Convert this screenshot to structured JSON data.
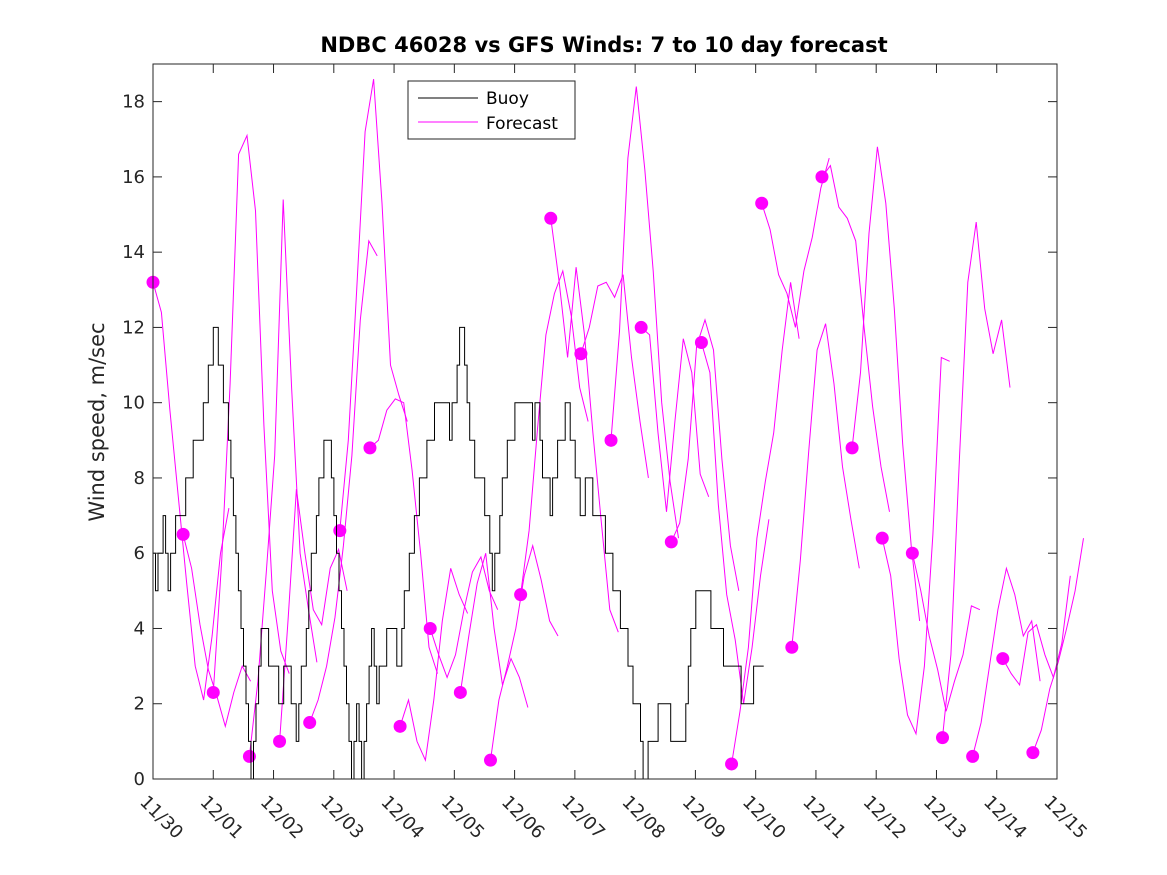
{
  "colors": {
    "buoy": "#000000",
    "forecast": "#ff00ff",
    "axis": "#262626",
    "background": "#ffffff"
  },
  "chart_data": {
    "type": "line",
    "title": "NDBC 46028 vs GFS Winds: 7 to 10 day forecast",
    "xlabel": "",
    "ylabel": "Wind speed, m/sec",
    "xlim": [
      0,
      15
    ],
    "ylim": [
      0,
      19
    ],
    "grid": false,
    "legend_position": "top-center",
    "x_ticks": [
      0,
      1,
      2,
      3,
      4,
      5,
      6,
      7,
      8,
      9,
      10,
      11,
      12,
      13,
      14,
      15
    ],
    "x_tick_labels": [
      "11/30",
      "12/01",
      "12/02",
      "12/03",
      "12/04",
      "12/05",
      "12/06",
      "12/07",
      "12/08",
      "12/09",
      "12/10",
      "12/11",
      "12/12",
      "12/13",
      "12/14",
      "12/15"
    ],
    "y_ticks": [
      0,
      2,
      4,
      6,
      8,
      10,
      12,
      14,
      16,
      18
    ],
    "y_tick_labels": [
      "0",
      "2",
      "4",
      "6",
      "8",
      "10",
      "12",
      "14",
      "16",
      "18"
    ],
    "legend": [
      "Buoy",
      "Forecast"
    ],
    "series": [
      {
        "name": "Buoy",
        "x_step": 0.0417,
        "values": [
          6,
          5,
          6,
          6,
          7,
          6,
          5,
          6,
          6,
          7,
          7,
          7,
          7,
          8,
          8,
          8,
          9,
          9,
          9,
          9,
          10,
          10,
          11,
          11,
          12,
          12,
          11,
          11,
          10,
          10,
          9,
          8,
          7,
          6,
          5,
          4,
          3,
          2,
          1,
          0,
          1,
          2,
          3,
          4,
          4,
          4,
          3,
          3,
          3,
          3,
          2,
          2,
          3,
          3,
          3,
          2,
          2,
          1,
          2,
          3,
          3,
          4,
          5,
          6,
          6,
          7,
          8,
          8,
          9,
          9,
          9,
          8,
          7,
          6,
          5,
          4,
          3,
          2,
          1,
          0,
          1,
          2,
          1,
          0,
          1,
          2,
          3,
          4,
          3,
          2,
          3,
          3,
          3,
          4,
          4,
          4,
          4,
          3,
          3,
          4,
          5,
          5,
          6,
          6,
          7,
          7,
          8,
          8,
          8,
          9,
          9,
          9,
          10,
          10,
          10,
          10,
          10,
          10,
          9,
          10,
          10,
          11,
          12,
          12,
          11,
          10,
          9,
          9,
          8,
          8,
          8,
          8,
          7,
          7,
          6,
          5,
          6,
          6,
          7,
          8,
          8,
          9,
          9,
          9,
          10,
          10,
          10,
          10,
          10,
          10,
          10,
          9,
          10,
          10,
          9,
          8,
          8,
          8,
          7,
          8,
          8,
          9,
          9,
          9,
          10,
          10,
          9,
          9,
          8,
          8,
          7,
          7,
          8,
          8,
          8,
          7,
          7,
          7,
          7,
          7,
          6,
          6,
          6,
          5,
          5,
          5,
          4,
          4,
          4,
          3,
          3,
          2,
          2,
          2,
          1,
          0,
          0,
          1,
          1,
          1,
          1,
          2,
          2,
          2,
          2,
          2,
          1,
          1,
          1,
          1,
          1,
          1,
          2,
          3,
          4,
          4,
          5,
          5,
          5,
          5,
          5,
          5,
          4,
          4,
          4,
          4,
          4,
          3,
          3,
          3,
          3,
          3,
          3,
          3,
          2,
          2,
          2,
          2,
          2,
          3,
          3,
          3,
          3
        ]
      },
      {
        "name": "Forecast",
        "runs": [
          {
            "x0": 0.0,
            "values": [
              13.2,
              12.4,
              9.8,
              7.5,
              5.2,
              3.0,
              2.1,
              3.8,
              6.0,
              7.2
            ]
          },
          {
            "x0": 0.5,
            "values": [
              6.5,
              5.6,
              4.1,
              2.9,
              2.2,
              1.4,
              2.3,
              3.0,
              2.6
            ]
          },
          {
            "x0": 1.0,
            "values": [
              2.3,
              5.8,
              10.5,
              16.6,
              17.1,
              15.1,
              9.4,
              5.0,
              3.4,
              2.8
            ]
          },
          {
            "x0": 1.6,
            "values": [
              0.6,
              2.6,
              5.5,
              8.6,
              15.4,
              10.4,
              6.0,
              4.5,
              3.1
            ]
          },
          {
            "x0": 2.1,
            "values": [
              1.0,
              4.2,
              7.7,
              6.0,
              4.5,
              4.1,
              5.6,
              6.1,
              5.0
            ]
          },
          {
            "x0": 2.6,
            "values": [
              1.5,
              2.1,
              3.0,
              4.3,
              6.2,
              8.6,
              12.2,
              14.3,
              13.9
            ]
          },
          {
            "x0": 3.1,
            "values": [
              6.6,
              9.0,
              13.0,
              17.2,
              18.6,
              15.3,
              11.0,
              10.2,
              9.5
            ]
          },
          {
            "x0": 3.6,
            "values": [
              8.8,
              9.0,
              9.8,
              10.1,
              10.0,
              8.2,
              6.0,
              3.5,
              2.8
            ]
          },
          {
            "x0": 4.1,
            "values": [
              1.4,
              2.1,
              1.0,
              0.5,
              2.1,
              4.2,
              5.6,
              4.9,
              4.4
            ]
          },
          {
            "x0": 4.6,
            "values": [
              4.0,
              3.3,
              2.7,
              3.3,
              4.5,
              5.5,
              5.9,
              5.0,
              4.5
            ]
          },
          {
            "x0": 5.1,
            "values": [
              2.3,
              3.8,
              5.2,
              6.0,
              4.0,
              2.5,
              3.2,
              2.7,
              1.9
            ]
          },
          {
            "x0": 5.6,
            "values": [
              0.5,
              2.1,
              3.0,
              4.0,
              5.4,
              6.2,
              5.3,
              4.2,
              3.8
            ]
          },
          {
            "x0": 6.1,
            "values": [
              4.9,
              6.6,
              9.3,
              11.8,
              12.9,
              13.5,
              12.3,
              10.4,
              9.5
            ]
          },
          {
            "x0": 6.6,
            "values": [
              14.9,
              13.2,
              11.2,
              13.6,
              11.8,
              9.2,
              6.8,
              4.5,
              3.9
            ]
          },
          {
            "x0": 7.1,
            "values": [
              11.3,
              12.0,
              13.1,
              13.2,
              12.8,
              13.4,
              11.2,
              9.5,
              8.0
            ]
          },
          {
            "x0": 7.6,
            "values": [
              9.0,
              11.9,
              16.5,
              18.4,
              16.2,
              13.5,
              10.0,
              7.9,
              6.4
            ]
          },
          {
            "x0": 8.1,
            "values": [
              12.0,
              11.8,
              9.2,
              7.1,
              9.5,
              11.7,
              10.8,
              8.1,
              7.5
            ]
          },
          {
            "x0": 8.6,
            "values": [
              6.3,
              6.8,
              8.5,
              11.5,
              12.2,
              11.4,
              8.5,
              6.2,
              5.0
            ]
          },
          {
            "x0": 9.1,
            "values": [
              11.6,
              10.8,
              7.3,
              4.9,
              3.7,
              2.0,
              3.5,
              5.4,
              6.9
            ]
          },
          {
            "x0": 9.6,
            "values": [
              0.4,
              1.8,
              3.5,
              6.4,
              7.9,
              9.2,
              11.4,
              13.2,
              11.7
            ]
          },
          {
            "x0": 10.1,
            "values": [
              15.3,
              14.6,
              13.4,
              12.9,
              12.0,
              13.5,
              14.4,
              15.7,
              16.5
            ]
          },
          {
            "x0": 10.6,
            "values": [
              3.5,
              5.8,
              8.7,
              11.4,
              12.1,
              10.5,
              8.3,
              6.9,
              5.6
            ]
          },
          {
            "x0": 11.1,
            "values": [
              16.0,
              16.3,
              15.2,
              14.9,
              14.3,
              12.0,
              9.9,
              8.3,
              7.1
            ]
          },
          {
            "x0": 11.6,
            "values": [
              8.8,
              10.8,
              14.5,
              16.8,
              15.3,
              12.5,
              8.9,
              6.2,
              4.2
            ]
          },
          {
            "x0": 12.1,
            "values": [
              6.4,
              5.4,
              3.2,
              1.7,
              1.2,
              3.0,
              6.5,
              11.2,
              11.1
            ]
          },
          {
            "x0": 12.6,
            "values": [
              6.0,
              5.0,
              3.8,
              2.9,
              1.8,
              2.6,
              3.3,
              4.6,
              4.5
            ]
          },
          {
            "x0": 13.1,
            "values": [
              1.1,
              3.3,
              8.5,
              13.2,
              14.8,
              12.5,
              11.3,
              12.2,
              10.4
            ]
          },
          {
            "x0": 13.6,
            "values": [
              0.6,
              1.5,
              3.0,
              4.5,
              5.6,
              4.9,
              3.8,
              4.2,
              2.6
            ]
          },
          {
            "x0": 14.1,
            "values": [
              3.2,
              2.8,
              2.5,
              3.9,
              4.1,
              3.3,
              2.7,
              3.6,
              5.4
            ]
          },
          {
            "x0": 14.6,
            "values": [
              0.7,
              1.3,
              2.4,
              3.1,
              4.0,
              5.0,
              6.4
            ]
          }
        ],
        "run_x_step": 0.14
      }
    ]
  }
}
